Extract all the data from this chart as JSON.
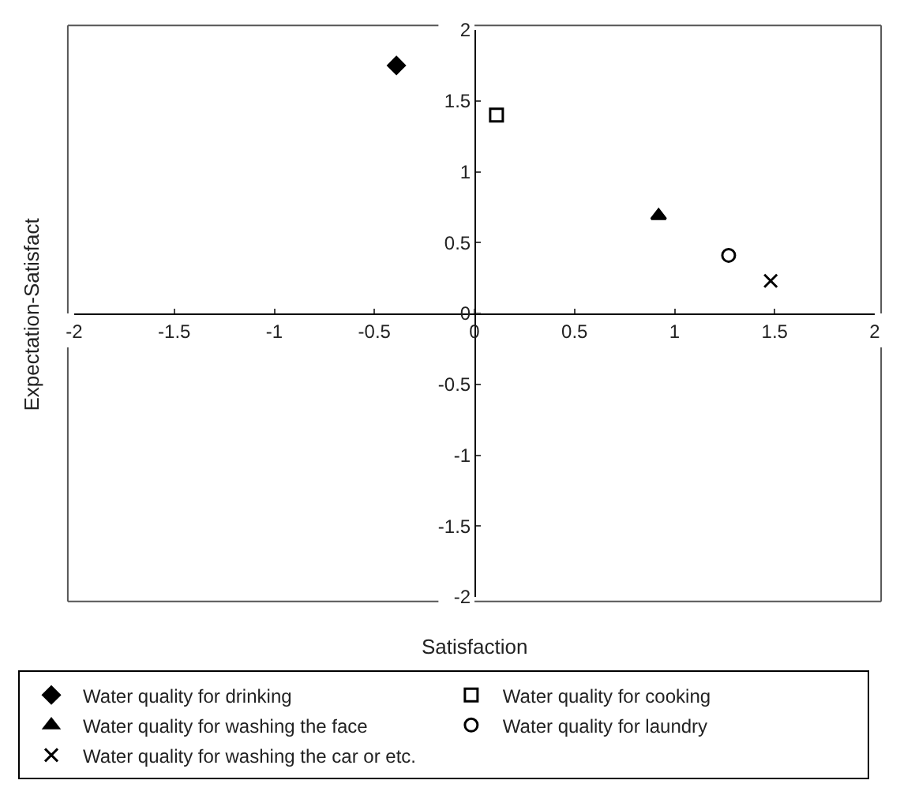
{
  "chart_data": {
    "type": "scatter",
    "xlabel": "Satisfaction",
    "ylabel": "Expectation-Satisfact",
    "xlim": [
      -2,
      2
    ],
    "ylim": [
      -2,
      2
    ],
    "xticks": [
      -2,
      -1.5,
      -1,
      -0.5,
      0,
      0.5,
      1,
      1.5,
      2
    ],
    "yticks": [
      -2,
      -1.5,
      -1,
      -0.5,
      0,
      0.5,
      1,
      1.5,
      2
    ],
    "legend": "bottom",
    "series": [
      {
        "name": "Water quality for drinking",
        "color": "#000000",
        "marker": "diamond",
        "x": [
          -0.39
        ],
        "values": [
          1.75
        ]
      },
      {
        "name": "Water quality for cooking",
        "color": "#000000",
        "marker": "square",
        "x": [
          0.11
        ],
        "values": [
          1.4
        ]
      },
      {
        "name": "Water quality for washing the face",
        "color": "#000000",
        "marker": "triangle",
        "x": [
          0.92
        ],
        "values": [
          0.69
        ]
      },
      {
        "name": "Water quality for laundry",
        "color": "#000000",
        "marker": "circle",
        "x": [
          1.27
        ],
        "values": [
          0.41
        ]
      },
      {
        "name": "Water quality for washing the car or etc.",
        "color": "#000000",
        "marker": "cross",
        "x": [
          1.48
        ],
        "values": [
          0.23
        ]
      }
    ]
  }
}
